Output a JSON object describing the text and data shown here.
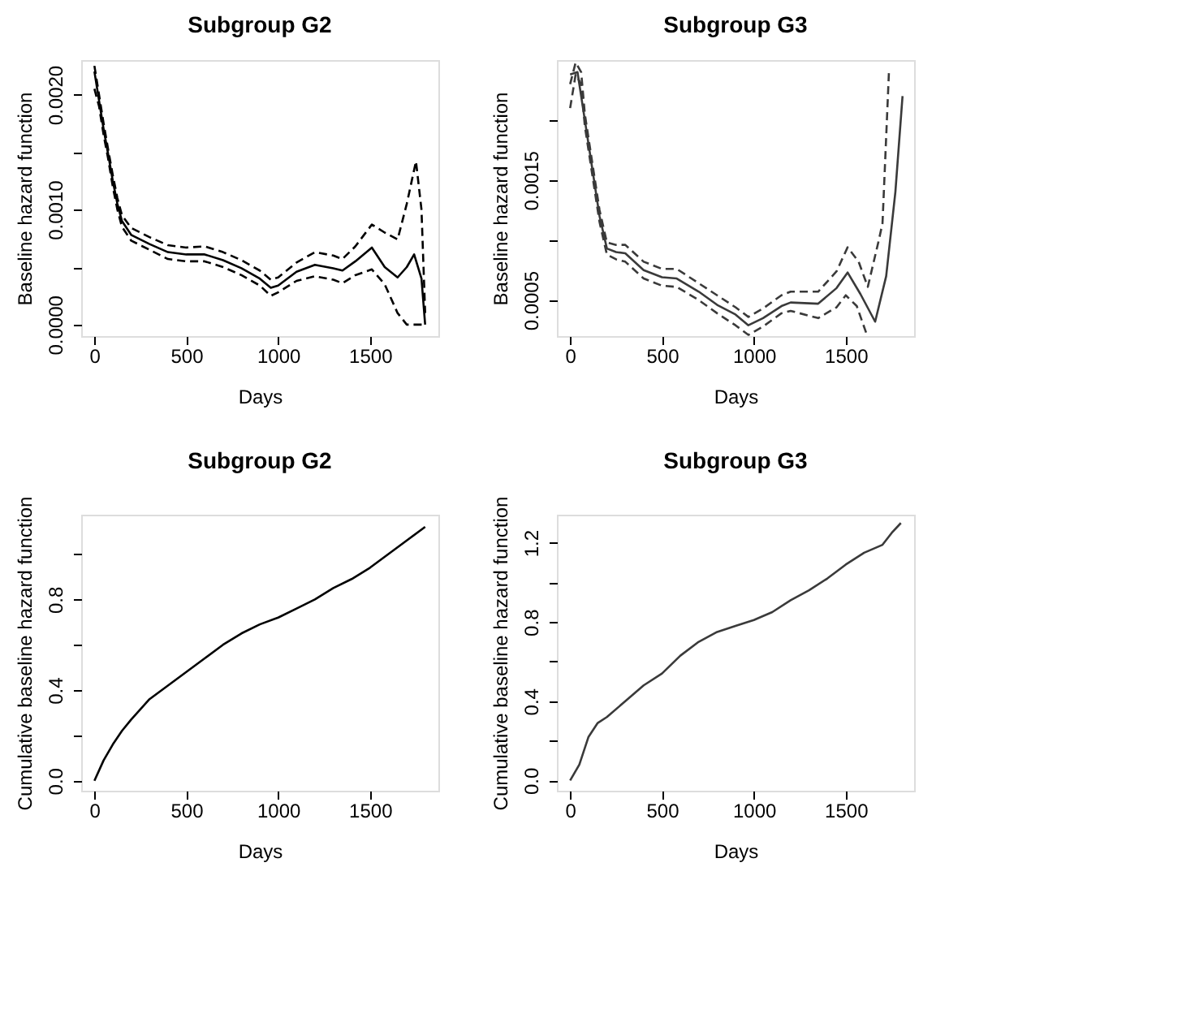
{
  "chart_data": [
    {
      "type": "line",
      "title": "Subgroup G2",
      "xlabel": "Days",
      "ylabel": "Baseline hazard function",
      "xlim": [
        -72,
        1872
      ],
      "ylim": [
        -0.0001,
        0.0023
      ],
      "xticks": [
        0,
        500,
        1000,
        1500
      ],
      "yticks": [
        {
          "value": 0,
          "label": "0.0000"
        },
        {
          "value": 0.0005,
          "label": null
        },
        {
          "value": 0.001,
          "label": "0.0010"
        },
        {
          "value": 0.0015,
          "label": null
        },
        {
          "value": 0.002,
          "label": "0.0020"
        }
      ],
      "grid": false,
      "legend": false,
      "series": [
        {
          "color": "#000000",
          "line_style": "solid",
          "x": [
            0,
            25,
            50,
            75,
            100,
            125,
            150,
            200,
            300,
            400,
            500,
            600,
            700,
            800,
            900,
            960,
            1000,
            1100,
            1200,
            1300,
            1350,
            1420,
            1510,
            1580,
            1650,
            1700,
            1740,
            1780,
            1800
          ],
          "values": [
            0.0022,
            0.00195,
            0.0017,
            0.00148,
            0.00125,
            0.00105,
            0.0009,
            0.00078,
            0.0007,
            0.00063,
            0.00061,
            0.00061,
            0.00056,
            0.00049,
            0.0004,
            0.00032,
            0.00034,
            0.00046,
            0.00052,
            0.00049,
            0.00047,
            0.00055,
            0.00067,
            0.0005,
            0.00041,
            0.0005,
            0.00061,
            0.0004,
            0.0
          ]
        },
        {
          "color": "#000000",
          "line_style": "dashed",
          "x": [
            0,
            25,
            50,
            75,
            100,
            125,
            150,
            200,
            300,
            400,
            500,
            600,
            700,
            800,
            900,
            960,
            1000,
            1100,
            1200,
            1300,
            1350,
            1420,
            1510,
            1580,
            1650,
            1700,
            1750,
            1780,
            1800
          ],
          "values": [
            0.00225,
            0.002,
            0.00175,
            0.00152,
            0.0013,
            0.0011,
            0.00095,
            0.00084,
            0.00076,
            0.00069,
            0.00067,
            0.00068,
            0.00063,
            0.00056,
            0.00047,
            0.00039,
            0.00041,
            0.00054,
            0.00063,
            0.0006,
            0.00057,
            0.00068,
            0.00087,
            0.0008,
            0.00074,
            0.00105,
            0.00142,
            0.001,
            0.0001
          ]
        },
        {
          "color": "#000000",
          "line_style": "dashed",
          "x": [
            0,
            25,
            50,
            75,
            100,
            125,
            150,
            200,
            300,
            400,
            500,
            600,
            700,
            800,
            900,
            960,
            1000,
            1100,
            1200,
            1300,
            1350,
            1420,
            1510,
            1580,
            1650,
            1700,
            1750,
            1800
          ],
          "values": [
            0.00205,
            0.0019,
            0.00165,
            0.00144,
            0.0012,
            0.001,
            0.00085,
            0.00073,
            0.00065,
            0.00057,
            0.00055,
            0.00055,
            0.0005,
            0.00043,
            0.00034,
            0.00025,
            0.00028,
            0.00038,
            0.00042,
            0.00039,
            0.00036,
            0.00043,
            0.00048,
            0.00035,
            0.0001,
            0.0,
            0.0,
            0.0
          ]
        }
      ]
    },
    {
      "type": "line",
      "title": "Subgroup G3",
      "xlabel": "Days",
      "ylabel": "Baseline hazard function",
      "xlim": [
        -72,
        1872
      ],
      "ylim": [
        0.0002,
        0.0025
      ],
      "xticks": [
        0,
        500,
        1000,
        1500
      ],
      "yticks": [
        {
          "value": 0.0005,
          "label": "0.0005"
        },
        {
          "value": 0.001,
          "label": null
        },
        {
          "value": 0.0015,
          "label": "0.0015"
        },
        {
          "value": 0.002,
          "label": null
        }
      ],
      "grid": false,
      "legend": false,
      "series": [
        {
          "color": "#3a3a3a",
          "line_style": "solid",
          "x": [
            0,
            40,
            80,
            120,
            160,
            200,
            250,
            300,
            400,
            500,
            580,
            700,
            800,
            900,
            970,
            1050,
            1150,
            1200,
            1350,
            1450,
            1510,
            1580,
            1660,
            1720,
            1770,
            1809
          ],
          "values": [
            0.00238,
            0.0024,
            0.002,
            0.0016,
            0.0012,
            0.00093,
            0.0009,
            0.00089,
            0.00075,
            0.00069,
            0.00068,
            0.00057,
            0.00046,
            0.00038,
            0.00029,
            0.00035,
            0.00045,
            0.00048,
            0.00047,
            0.0006,
            0.00073,
            0.00055,
            0.00032,
            0.0007,
            0.0014,
            0.0022
          ]
        },
        {
          "color": "#3a3a3a",
          "line_style": "dashed",
          "x": [
            0,
            30,
            60,
            80,
            120,
            160,
            200,
            250,
            300,
            400,
            500,
            580,
            700,
            800,
            900,
            970,
            1050,
            1150,
            1200,
            1350,
            1450,
            1510,
            1570,
            1620,
            1680,
            1700,
            1735
          ],
          "values": [
            0.0023,
            0.00248,
            0.0024,
            0.00205,
            0.00165,
            0.00125,
            0.00098,
            0.00096,
            0.00096,
            0.00082,
            0.00076,
            0.00076,
            0.00064,
            0.00054,
            0.00044,
            0.00036,
            0.00043,
            0.00054,
            0.00057,
            0.00057,
            0.00074,
            0.00094,
            0.00082,
            0.00061,
            0.001,
            0.00114,
            0.0024
          ]
        },
        {
          "color": "#3a3a3a",
          "line_style": "dashed",
          "x": [
            0,
            30,
            60,
            80,
            120,
            160,
            200,
            250,
            300,
            400,
            500,
            580,
            700,
            800,
            900,
            970,
            1050,
            1150,
            1200,
            1350,
            1450,
            1500,
            1560,
            1615
          ],
          "values": [
            0.0021,
            0.00238,
            0.0023,
            0.00195,
            0.00155,
            0.00115,
            0.00088,
            0.00084,
            0.00082,
            0.00068,
            0.00062,
            0.00061,
            0.0005,
            0.00039,
            0.00029,
            0.00021,
            0.00028,
            0.00039,
            0.00041,
            0.00035,
            0.00044,
            0.00054,
            0.00045,
            0.00021
          ]
        }
      ]
    },
    {
      "type": "line",
      "title": "Subgroup G2",
      "xlabel": "Days",
      "ylabel": "Cumulative baseline hazard function",
      "xlim": [
        -72,
        1872
      ],
      "ylim": [
        -0.044,
        1.174
      ],
      "xticks": [
        0,
        500,
        1000,
        1500
      ],
      "yticks": [
        {
          "value": 0,
          "label": "0.0"
        },
        {
          "value": 0.2,
          "label": null
        },
        0.4,
        {
          "value": 0.6,
          "label": null
        },
        0.8,
        {
          "value": 1.0,
          "label": null
        }
      ],
      "grid": false,
      "legend": false,
      "series": [
        {
          "color": "#000000",
          "line_style": "solid",
          "x": [
            0,
            50,
            100,
            150,
            200,
            300,
            400,
            500,
            600,
            700,
            800,
            900,
            1000,
            1100,
            1200,
            1300,
            1400,
            1500,
            1600,
            1700,
            1800
          ],
          "values": [
            0.0,
            0.09,
            0.16,
            0.22,
            0.27,
            0.36,
            0.42,
            0.48,
            0.54,
            0.6,
            0.65,
            0.69,
            0.72,
            0.76,
            0.8,
            0.85,
            0.89,
            0.94,
            1.0,
            1.06,
            1.12
          ]
        }
      ]
    },
    {
      "type": "line",
      "title": "Subgroup G3",
      "xlabel": "Days",
      "ylabel": "Cumulative baseline hazard function",
      "xlim": [
        -72,
        1872
      ],
      "ylim": [
        -0.052,
        1.342
      ],
      "xticks": [
        0,
        500,
        1000,
        1500
      ],
      "yticks": [
        {
          "value": 0,
          "label": "0.0"
        },
        {
          "value": 0.2,
          "label": null
        },
        0.4,
        {
          "value": 0.6,
          "label": null
        },
        0.8,
        {
          "value": 1.0,
          "label": null
        },
        1.2
      ],
      "grid": false,
      "legend": false,
      "series": [
        {
          "color": "#3a3a3a",
          "line_style": "solid",
          "x": [
            0,
            50,
            100,
            150,
            200,
            300,
            400,
            500,
            600,
            700,
            800,
            900,
            1000,
            1100,
            1200,
            1300,
            1400,
            1500,
            1600,
            1700,
            1750,
            1800
          ],
          "values": [
            0.0,
            0.08,
            0.22,
            0.29,
            0.32,
            0.4,
            0.48,
            0.54,
            0.63,
            0.7,
            0.75,
            0.78,
            0.81,
            0.85,
            0.91,
            0.96,
            1.02,
            1.09,
            1.15,
            1.19,
            1.25,
            1.3
          ]
        }
      ]
    }
  ]
}
